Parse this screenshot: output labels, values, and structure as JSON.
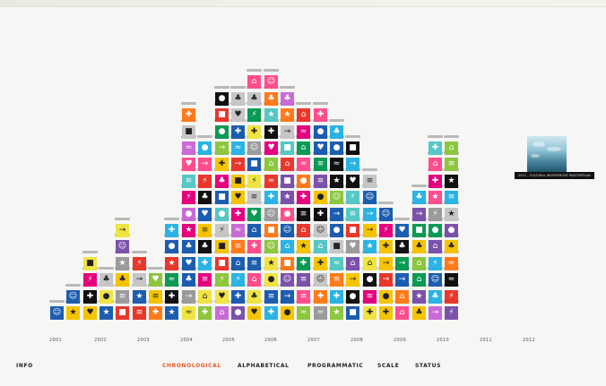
{
  "nav": {
    "info_label": "INFO",
    "sorts": [
      {
        "id": "chronological",
        "label": "CHRONOLOGICAL",
        "active": true
      },
      {
        "id": "alphabetical",
        "label": "ALPHABETICAL",
        "active": false
      },
      {
        "id": "programmatic",
        "label": "PROGRAMMATIC",
        "active": false
      },
      {
        "id": "scale",
        "label": "SCALE",
        "active": false
      },
      {
        "id": "status",
        "label": "STATUS",
        "active": false
      }
    ],
    "active_color": "#e55a2a"
  },
  "timeline": {
    "years": [
      "2001",
      "2002",
      "2003",
      "2004",
      "2005",
      "2006",
      "2007",
      "2008",
      "2009",
      "2010",
      "2011",
      "2012"
    ],
    "column_heights": [
      1,
      2,
      4,
      3,
      6,
      4,
      3,
      6,
      13,
      11,
      14,
      14,
      15,
      15,
      14,
      13,
      13,
      12,
      11,
      9,
      7,
      6,
      8,
      11,
      11
    ],
    "palette": [
      "#2bb3e3",
      "#f5c400",
      "#e8372c",
      "#8dc63f",
      "#e5007e",
      "#ff7a1a",
      "#7b52ab",
      "#1d5db0",
      "#c6c6c6",
      "#111111",
      "#f0e442",
      "#c86bd6",
      "#0b9a55",
      "#56c7c4",
      "#ff4d8d",
      "#9b9b9b"
    ],
    "icons": [
      "square-icon",
      "circle-icon",
      "star-icon",
      "arrow-icon",
      "cross-icon",
      "tree-icon",
      "figure-icon",
      "wave-icon",
      "house-icon",
      "bolt-icon",
      "heart-icon",
      "stripes-icon"
    ],
    "glyphs": [
      "■",
      "●",
      "★",
      "→",
      "✚",
      "♣",
      "☺",
      "≈",
      "⌂",
      "⚡",
      "♥",
      "≡"
    ]
  },
  "tooltip": {
    "project_label": "2012 – CULTURAL WATERFRONT MASTERPLAN"
  }
}
